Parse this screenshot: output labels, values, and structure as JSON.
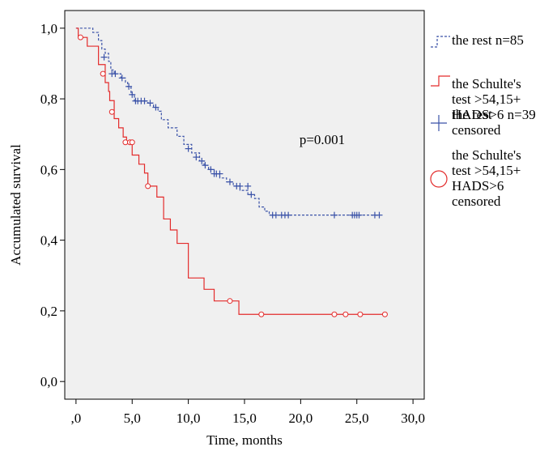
{
  "chart_data": {
    "type": "line",
    "subtype": "kaplan-meier",
    "xlabel": "Time, months",
    "ylabel": "Accumulated survival",
    "xlim": [
      -1,
      31
    ],
    "ylim": [
      -0.05,
      1.05
    ],
    "x_ticks": [
      0,
      5,
      10,
      15,
      20,
      25,
      30
    ],
    "x_tick_labels": [
      ",0",
      "5,0",
      "10,0",
      "15,0",
      "20,0",
      "25,0",
      "30,0"
    ],
    "y_ticks": [
      0,
      0.2,
      0.4,
      0.6,
      0.8,
      1.0
    ],
    "y_tick_labels": [
      "0,0",
      "0,2",
      "0,4",
      "0,6",
      "0,8",
      "1,0"
    ],
    "annotation": "p=0.001",
    "grid": false,
    "legend_position": "right",
    "legend": [
      {
        "label_lines": [
          "the rest  n=85"
        ],
        "symbol": "dashed-step"
      },
      {
        "label_lines": [
          "the Schulte's",
          "test >54,15+",
          "HADS>6 n=39"
        ],
        "symbol": "solid-step"
      },
      {
        "label_lines": [
          "the rest",
          "censored"
        ],
        "symbol": "plus"
      },
      {
        "label_lines": [
          "the Schulte's",
          "test >54,15+",
          "HADS>6",
          "censored"
        ],
        "symbol": "circle"
      }
    ],
    "series": [
      {
        "name": "the rest  n=85",
        "color": "#3a52a8",
        "dash": true,
        "steps": [
          [
            0,
            1.0
          ],
          [
            1.5,
            0.988
          ],
          [
            2.0,
            0.965
          ],
          [
            2.3,
            0.941
          ],
          [
            2.6,
            0.929
          ],
          [
            2.9,
            0.906
          ],
          [
            3.1,
            0.882
          ],
          [
            3.4,
            0.871
          ],
          [
            4.0,
            0.859
          ],
          [
            4.4,
            0.847
          ],
          [
            4.6,
            0.835
          ],
          [
            4.9,
            0.812
          ],
          [
            5.2,
            0.794
          ],
          [
            5.6,
            0.794
          ],
          [
            6.0,
            0.794
          ],
          [
            6.4,
            0.788
          ],
          [
            6.9,
            0.776
          ],
          [
            7.3,
            0.765
          ],
          [
            7.6,
            0.741
          ],
          [
            8.2,
            0.718
          ],
          [
            9.0,
            0.694
          ],
          [
            9.6,
            0.671
          ],
          [
            10.3,
            0.647
          ],
          [
            11.0,
            0.624
          ],
          [
            11.4,
            0.612
          ],
          [
            11.8,
            0.6
          ],
          [
            12.3,
            0.588
          ],
          [
            12.8,
            0.576
          ],
          [
            13.4,
            0.565
          ],
          [
            14.0,
            0.553
          ],
          [
            14.6,
            0.541
          ],
          [
            15.3,
            0.529
          ],
          [
            15.9,
            0.518
          ],
          [
            16.3,
            0.494
          ],
          [
            16.8,
            0.482
          ],
          [
            17.2,
            0.471
          ]
        ],
        "end_x": 27.0,
        "censored": [
          [
            2.5,
            0.918
          ],
          [
            3.2,
            0.871
          ],
          [
            3.5,
            0.871
          ],
          [
            4.1,
            0.859
          ],
          [
            4.7,
            0.835
          ],
          [
            5.0,
            0.812
          ],
          [
            5.3,
            0.794
          ],
          [
            5.5,
            0.794
          ],
          [
            5.8,
            0.794
          ],
          [
            6.1,
            0.794
          ],
          [
            6.6,
            0.788
          ],
          [
            7.1,
            0.776
          ],
          [
            10.0,
            0.659
          ],
          [
            10.7,
            0.635
          ],
          [
            11.2,
            0.624
          ],
          [
            11.5,
            0.612
          ],
          [
            12.0,
            0.6
          ],
          [
            12.3,
            0.588
          ],
          [
            12.5,
            0.588
          ],
          [
            12.8,
            0.588
          ],
          [
            13.7,
            0.565
          ],
          [
            14.3,
            0.553
          ],
          [
            14.6,
            0.553
          ],
          [
            15.3,
            0.553
          ],
          [
            15.6,
            0.529
          ],
          [
            17.5,
            0.471
          ],
          [
            17.8,
            0.471
          ],
          [
            18.3,
            0.471
          ],
          [
            18.6,
            0.471
          ],
          [
            18.9,
            0.471
          ],
          [
            23.0,
            0.471
          ],
          [
            24.6,
            0.471
          ],
          [
            24.8,
            0.471
          ],
          [
            25.0,
            0.471
          ],
          [
            25.2,
            0.471
          ],
          [
            26.6,
            0.471
          ],
          [
            27.0,
            0.471
          ]
        ]
      },
      {
        "name": "the Schulte's test >54,15+ HADS>6 n=39",
        "color": "#e32b2b",
        "dash": false,
        "steps": [
          [
            0,
            1.0
          ],
          [
            0.2,
            0.974
          ],
          [
            1.0,
            0.949
          ],
          [
            2.0,
            0.897
          ],
          [
            2.6,
            0.846
          ],
          [
            2.9,
            0.821
          ],
          [
            3.0,
            0.795
          ],
          [
            3.4,
            0.744
          ],
          [
            3.8,
            0.718
          ],
          [
            4.2,
            0.692
          ],
          [
            4.5,
            0.677
          ],
          [
            5.0,
            0.641
          ],
          [
            5.6,
            0.615
          ],
          [
            6.1,
            0.59
          ],
          [
            6.4,
            0.553
          ],
          [
            7.2,
            0.522
          ],
          [
            7.8,
            0.46
          ],
          [
            8.4,
            0.429
          ],
          [
            9.0,
            0.391
          ],
          [
            10.0,
            0.293
          ],
          [
            11.4,
            0.261
          ],
          [
            12.3,
            0.228
          ],
          [
            14.5,
            0.19
          ]
        ],
        "end_x": 27.5,
        "censored": [
          [
            0.4,
            0.974
          ],
          [
            2.4,
            0.871
          ],
          [
            3.2,
            0.763
          ],
          [
            4.4,
            0.677
          ],
          [
            4.8,
            0.677
          ],
          [
            5.0,
            0.677
          ],
          [
            6.4,
            0.553
          ],
          [
            13.7,
            0.228
          ],
          [
            16.5,
            0.19
          ],
          [
            23.0,
            0.19
          ],
          [
            24.0,
            0.19
          ],
          [
            25.3,
            0.19
          ],
          [
            27.5,
            0.19
          ]
        ]
      }
    ]
  }
}
